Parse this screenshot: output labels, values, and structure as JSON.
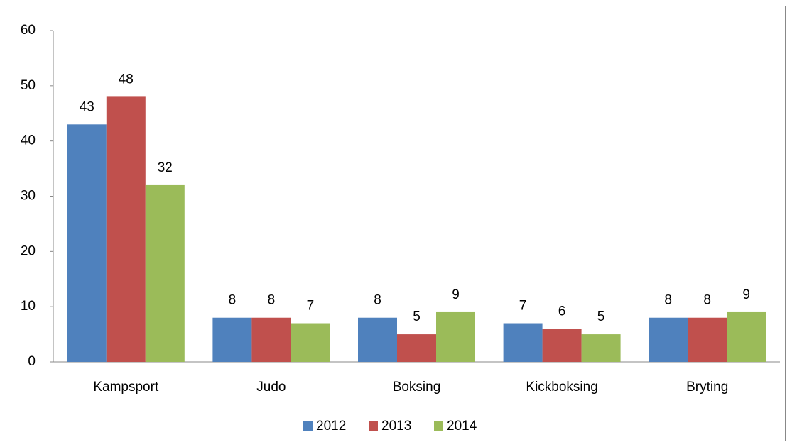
{
  "chart_data": {
    "type": "bar",
    "categories": [
      "Kampsport",
      "Judo",
      "Boksing",
      "Kickboksing",
      "Bryting"
    ],
    "series": [
      {
        "name": "2012",
        "color": "#4f81bd",
        "values": [
          43,
          8,
          8,
          7,
          8
        ]
      },
      {
        "name": "2013",
        "color": "#c0504d",
        "values": [
          48,
          8,
          5,
          6,
          8
        ]
      },
      {
        "name": "2014",
        "color": "#9bbb59",
        "values": [
          32,
          7,
          9,
          5,
          9
        ]
      }
    ],
    "ylim": [
      0,
      60
    ],
    "yticks": [
      0,
      10,
      20,
      30,
      40,
      50,
      60
    ],
    "grid": false,
    "legend": "bottom"
  }
}
